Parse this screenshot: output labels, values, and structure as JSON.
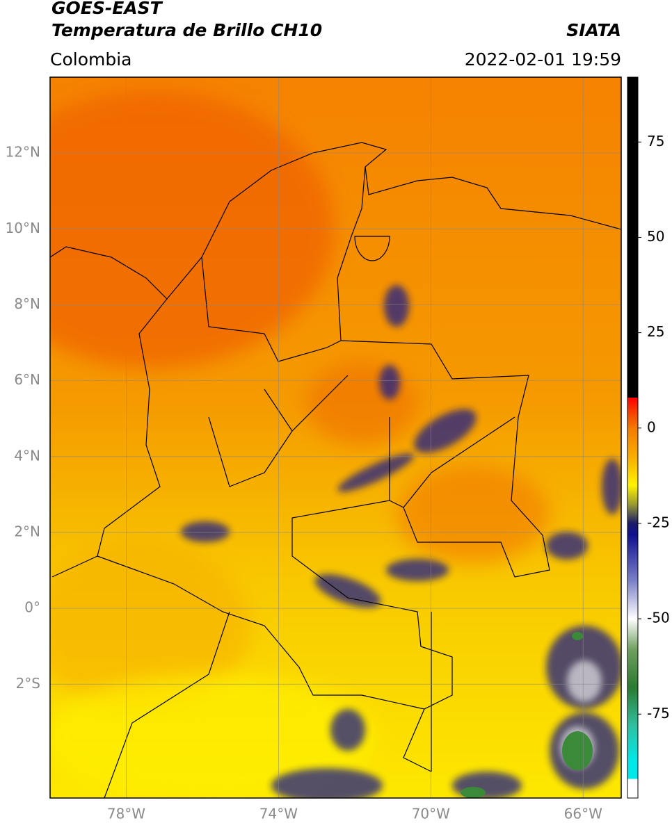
{
  "header": {
    "title": "GOES-EAST",
    "subtitle": "Temperatura de Brillo CH10",
    "source": "SIATA",
    "region": "Colombia",
    "datetime": "2022-02-01 19:59"
  },
  "chart_data": {
    "type": "map",
    "xlim": [
      -80,
      -65
    ],
    "ylim": [
      -5,
      14
    ],
    "xticks": [
      {
        "value": -78,
        "label": "78°W"
      },
      {
        "value": -74,
        "label": "74°W"
      },
      {
        "value": -70,
        "label": "70°W"
      },
      {
        "value": -66,
        "label": "66°W"
      }
    ],
    "yticks": [
      {
        "value": 12,
        "label": "12°N"
      },
      {
        "value": 10,
        "label": "10°N"
      },
      {
        "value": 8,
        "label": "8°N"
      },
      {
        "value": 6,
        "label": "6°N"
      },
      {
        "value": 4,
        "label": "4°N"
      },
      {
        "value": 2,
        "label": "2°N"
      },
      {
        "value": 0,
        "label": "0°"
      },
      {
        "value": -2,
        "label": "2°S"
      }
    ],
    "grid": true,
    "colorbar": {
      "lim": [
        -97,
        92
      ],
      "ticks": [
        75,
        50,
        25,
        0,
        -25,
        -50,
        -75
      ],
      "stops": [
        {
          "value": 92,
          "color": "#000000"
        },
        {
          "value": 8,
          "color": "#000000"
        },
        {
          "value": 8,
          "color": "#ff0000"
        },
        {
          "value": 3,
          "color": "#f55000"
        },
        {
          "value": 0,
          "color": "#f47a00"
        },
        {
          "value": -8,
          "color": "#f8b000"
        },
        {
          "value": -15,
          "color": "#fff200"
        },
        {
          "value": -20,
          "color": "#9a9a30"
        },
        {
          "value": -25,
          "color": "#1a1a6a"
        },
        {
          "value": -28,
          "color": "#101090"
        },
        {
          "value": -40,
          "color": "#7a80c8"
        },
        {
          "value": -50,
          "color": "#ffffff"
        },
        {
          "value": -58,
          "color": "#70a060"
        },
        {
          "value": -68,
          "color": "#2a7a30"
        },
        {
          "value": -78,
          "color": "#30c0a0"
        },
        {
          "value": -87,
          "color": "#00e8e8"
        },
        {
          "value": -92,
          "color": "#00e8e8"
        },
        {
          "value": -92,
          "color": "#ffffff"
        },
        {
          "value": -97,
          "color": "#ffffff"
        }
      ]
    }
  }
}
